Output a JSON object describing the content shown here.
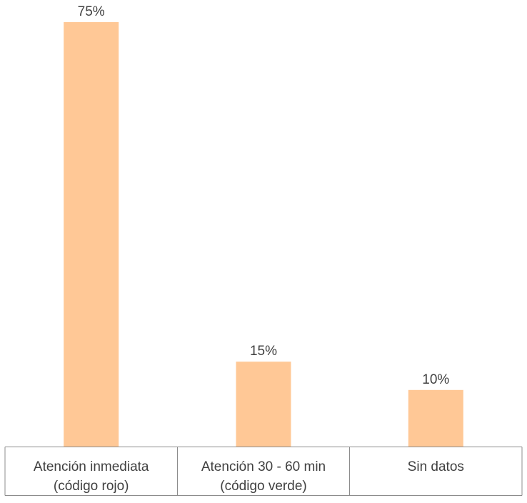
{
  "chart_data": {
    "type": "bar",
    "categories": [
      "Atención inmediata (código rojo)",
      "Atención 30 - 60 min (código verde)",
      "Sin datos"
    ],
    "category_lines": [
      [
        "Atención inmediata",
        "(código rojo)"
      ],
      [
        "Atención 30 - 60 min",
        "(código verde)"
      ],
      [
        "Sin datos"
      ]
    ],
    "values": [
      75,
      15,
      10
    ],
    "data_labels": [
      "75%",
      "15%",
      "10%"
    ],
    "unit": "%",
    "bar_color": "#FFC896",
    "text_color": "#404040",
    "axis_color": "#8C8C8C",
    "ylim": [
      0,
      75
    ],
    "grid": false,
    "legend": "none",
    "title": "",
    "xlabel": "",
    "ylabel": ""
  }
}
